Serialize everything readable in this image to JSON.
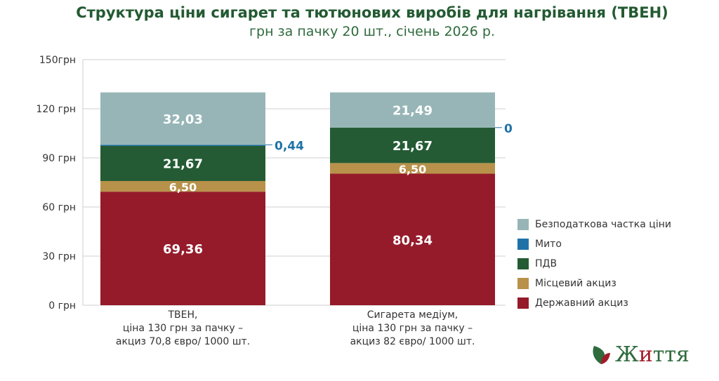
{
  "title": "Структура ціни сигарет та тютюнових виробів для нагрівання (ТВЕН)",
  "subtitle": "грн за пачку 20 шт., січень 2026 р.",
  "chart_data": {
    "type": "bar",
    "stacked": true,
    "ylim": [
      0,
      150
    ],
    "yticks": [
      0,
      30,
      60,
      90,
      120,
      150
    ],
    "ytick_labels": [
      "0 грн",
      "30 грн",
      "60 грн",
      "90 грн",
      "120 грн",
      "150грн"
    ],
    "grid": true,
    "legend_position": "right",
    "categories": [
      "ТВЕН,\nціна 130 грн за пачку –\nакциз 70,8 євро/ 1000 шт.",
      "Сигарета медіум,\nціна 130 грн за пачку –\nакциз 82 євро/ 1000 шт."
    ],
    "series": [
      {
        "name": "Державний акциз",
        "color": "#951b2a",
        "values": [
          69.36,
          80.34
        ],
        "labels": [
          "69,36",
          "80,34"
        ]
      },
      {
        "name": "Місцевий акциз",
        "color": "#b8924a",
        "values": [
          6.5,
          6.5
        ],
        "labels": [
          "6,50",
          "6,50"
        ]
      },
      {
        "name": "ПДВ",
        "color": "#245b34",
        "values": [
          21.67,
          21.67
        ],
        "labels": [
          "21,67",
          "21,67"
        ]
      },
      {
        "name": "Мито",
        "color": "#1f72a8",
        "values": [
          0.44,
          0
        ],
        "labels": [
          "0,44",
          "0"
        ]
      },
      {
        "name": "Безподаткова частка ціни",
        "color": "#97b5b7",
        "values": [
          32.03,
          21.49
        ],
        "labels": [
          "32,03",
          "21,49"
        ]
      }
    ]
  },
  "logo": {
    "text_a": "Ж",
    "text_b": "и",
    "text_c": "ття"
  }
}
